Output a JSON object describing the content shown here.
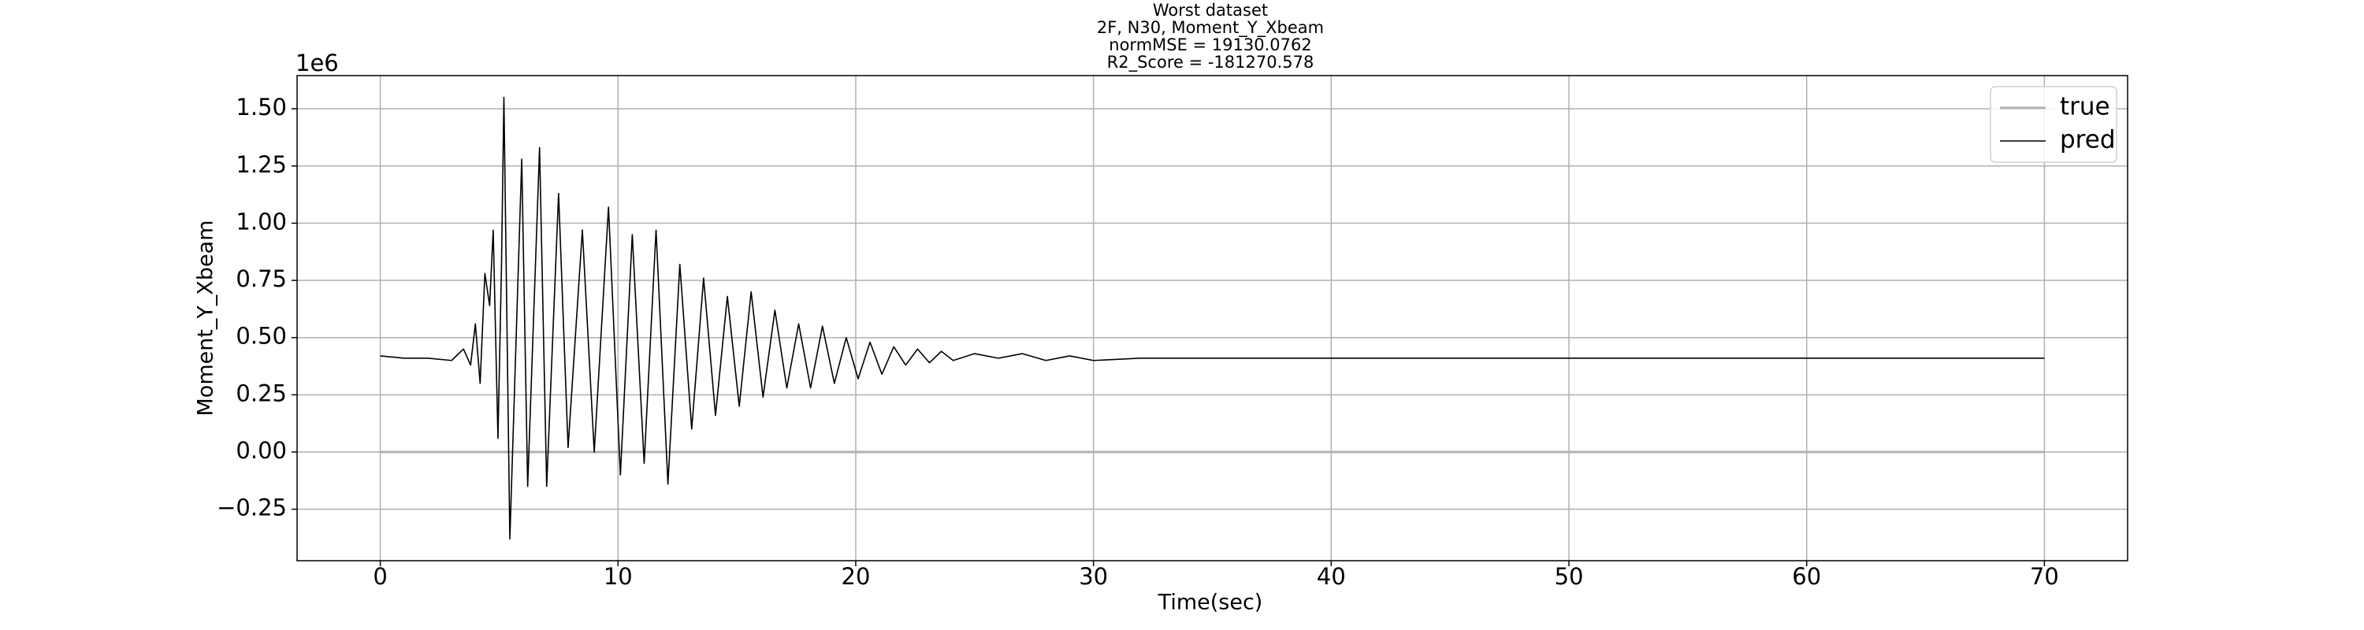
{
  "chart_data": {
    "type": "line",
    "title": [
      "Worst dataset",
      "2F, N30, Moment_Y_Xbeam",
      "normMSE = 19130.0762",
      "R2_Score = -181270.578"
    ],
    "x_label": "Time(sec)",
    "y_label": "Moment_Y_Xbeam",
    "y_offset_label": "1e6",
    "xlim": [
      -3.5,
      73.5
    ],
    "ylim": [
      -0.475,
      1.645
    ],
    "xticks": [
      0,
      10,
      20,
      30,
      40,
      50,
      60,
      70
    ],
    "yticks": [
      {
        "value": -0.25,
        "label": "−0.25"
      },
      {
        "value": 0,
        "label": "0.00"
      },
      {
        "value": 0.25,
        "label": "0.25"
      },
      {
        "value": 0.5,
        "label": "0.50"
      },
      {
        "value": 0.75,
        "label": "0.75"
      },
      {
        "value": 1,
        "label": "1.00"
      },
      {
        "value": 1.25,
        "label": "1.25"
      },
      {
        "value": 1.5,
        "label": "1.50"
      }
    ],
    "grid": true,
    "legend": "upper right",
    "series": [
      {
        "name": "true",
        "color": "#b0b0b0",
        "width": 3,
        "x": [
          0,
          70
        ],
        "values": [
          0,
          0
        ]
      },
      {
        "name": "pred",
        "color": "#000000",
        "width": 1.6,
        "x": [
          0,
          1,
          2,
          3,
          3.5,
          3.8,
          4.0,
          4.2,
          4.4,
          4.6,
          4.75,
          4.95,
          5.1,
          5.2,
          5.45,
          5.95,
          6.2,
          6.7,
          7.0,
          7.5,
          7.9,
          8.5,
          9.0,
          9.6,
          10.1,
          10.6,
          11.1,
          11.6,
          12.1,
          12.6,
          13.1,
          13.6,
          14.1,
          14.6,
          15.1,
          15.6,
          16.1,
          16.6,
          17.1,
          17.6,
          18.1,
          18.6,
          19.1,
          19.6,
          20.1,
          20.6,
          21.1,
          21.6,
          22.1,
          22.6,
          23.1,
          23.6,
          24.1,
          25,
          26,
          27,
          28,
          29,
          30,
          32,
          35,
          40,
          45,
          50,
          60,
          70
        ],
        "values": [
          0.42,
          0.41,
          0.41,
          0.4,
          0.45,
          0.38,
          0.56,
          0.3,
          0.78,
          0.64,
          0.97,
          0.06,
          0.82,
          1.55,
          -0.38,
          1.28,
          -0.15,
          1.33,
          -0.15,
          1.13,
          0.02,
          0.97,
          0.0,
          1.07,
          -0.1,
          0.95,
          -0.05,
          0.97,
          -0.14,
          0.82,
          0.1,
          0.76,
          0.16,
          0.68,
          0.2,
          0.7,
          0.24,
          0.62,
          0.28,
          0.56,
          0.28,
          0.55,
          0.3,
          0.5,
          0.32,
          0.48,
          0.34,
          0.46,
          0.38,
          0.45,
          0.39,
          0.44,
          0.4,
          0.43,
          0.41,
          0.43,
          0.4,
          0.42,
          0.4,
          0.41,
          0.41,
          0.41,
          0.41,
          0.41,
          0.41,
          0.41
        ]
      }
    ]
  }
}
